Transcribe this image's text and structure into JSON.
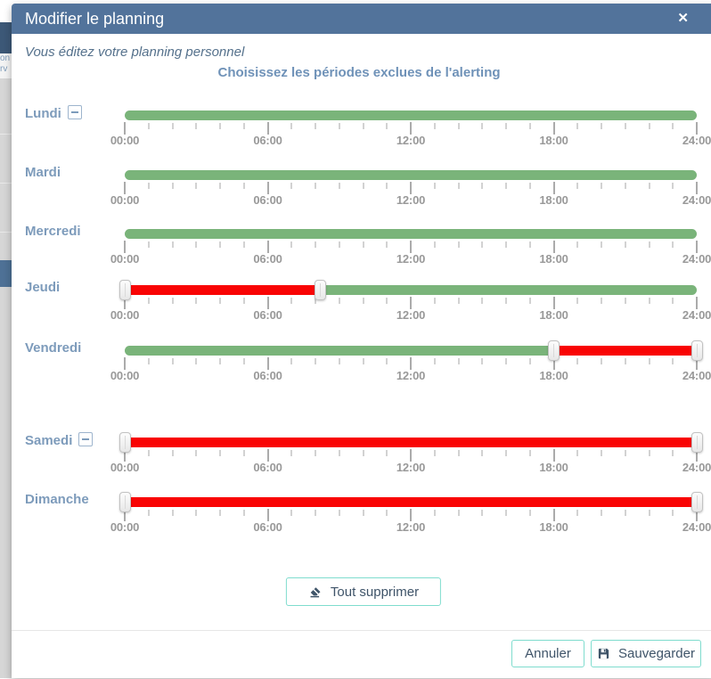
{
  "modal": {
    "title": "Modifier le planning",
    "close_label": "✕",
    "subtitle": "Vous éditez votre planning personnel",
    "instruction": "Choisissez les périodes exclues de l'alerting"
  },
  "slider": {
    "tick_labels": [
      "00:00",
      "06:00",
      "12:00",
      "18:00",
      "24:00"
    ],
    "hours_total": 24,
    "major_tick_every_hours": 6,
    "minor_tick_every_hours": 1
  },
  "days": [
    {
      "label": "Lundi",
      "removable": true,
      "segments": [
        {
          "color": "green",
          "from": 0,
          "to": 24
        }
      ],
      "handles": []
    },
    {
      "label": "Mardi",
      "removable": false,
      "segments": [
        {
          "color": "green",
          "from": 0,
          "to": 24
        }
      ],
      "handles": []
    },
    {
      "label": "Mercredi",
      "removable": false,
      "segments": [
        {
          "color": "green",
          "from": 0,
          "to": 24
        }
      ],
      "handles": []
    },
    {
      "label": "Jeudi",
      "removable": false,
      "segments": [
        {
          "color": "red",
          "from": 0,
          "to": 8.2
        },
        {
          "color": "green",
          "from": 8.2,
          "to": 24
        }
      ],
      "handles": [
        0,
        8.2
      ]
    },
    {
      "label": "Vendredi",
      "removable": false,
      "segments": [
        {
          "color": "green",
          "from": 0,
          "to": 18
        },
        {
          "color": "red",
          "from": 18,
          "to": 24
        }
      ],
      "handles": [
        18,
        24
      ]
    },
    {
      "label": "Samedi",
      "removable": true,
      "segments": [
        {
          "color": "red",
          "from": 0,
          "to": 24
        }
      ],
      "handles": [
        0,
        24
      ]
    },
    {
      "label": "Dimanche",
      "removable": false,
      "segments": [
        {
          "color": "red",
          "from": 0,
          "to": 24
        }
      ],
      "handles": [
        0,
        24
      ]
    }
  ],
  "actions": {
    "clear_all": "Tout supprimer",
    "cancel": "Annuler",
    "save": "Sauvegarder"
  },
  "colors": {
    "green": "#7ab47a",
    "red": "#f90404",
    "header": "#52739b",
    "accent_teal": "#7fdcce",
    "button_text": "#3f5469"
  },
  "background_fragments": {
    "line1": "on",
    "line2": "rv"
  }
}
